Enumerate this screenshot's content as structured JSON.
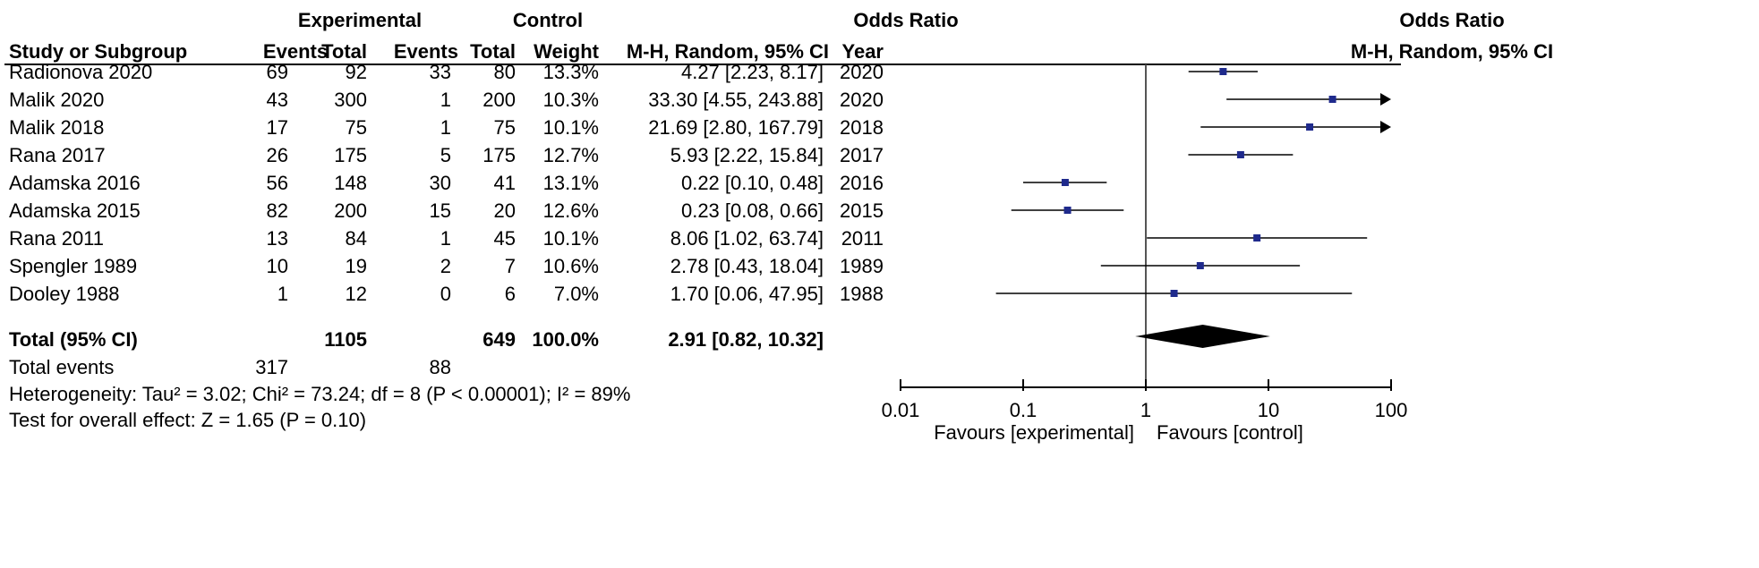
{
  "header": {
    "group1": "Experimental",
    "group2": "Control",
    "effect_top": "Odds Ratio",
    "plot_top": "Odds Ratio",
    "columns": {
      "study": "Study or Subgroup",
      "events1": "Events",
      "total1": "Total",
      "events2": "Events",
      "total2": "Total",
      "weight": "Weight",
      "method": "M-H, Random, 95% CI",
      "year": "Year",
      "plot_method": "M-H, Random, 95% CI"
    }
  },
  "studies": [
    {
      "study": "Radionova 2020",
      "events1": "69",
      "total1": "92",
      "events2": "33",
      "total2": "80",
      "weight": "13.3%",
      "ci_text": "4.27 [2.23, 8.17]",
      "year": "2020"
    },
    {
      "study": "Malik 2020",
      "events1": "43",
      "total1": "300",
      "events2": "1",
      "total2": "200",
      "weight": "10.3%",
      "ci_text": "33.30 [4.55, 243.88]",
      "year": "2020"
    },
    {
      "study": "Malik 2018",
      "events1": "17",
      "total1": "75",
      "events2": "1",
      "total2": "75",
      "weight": "10.1%",
      "ci_text": "21.69 [2.80, 167.79]",
      "year": "2018"
    },
    {
      "study": "Rana 2017",
      "events1": "26",
      "total1": "175",
      "events2": "5",
      "total2": "175",
      "weight": "12.7%",
      "ci_text": "5.93 [2.22, 15.84]",
      "year": "2017"
    },
    {
      "study": "Adamska 2016",
      "events1": "56",
      "total1": "148",
      "events2": "30",
      "total2": "41",
      "weight": "13.1%",
      "ci_text": "0.22 [0.10, 0.48]",
      "year": "2016"
    },
    {
      "study": "Adamska 2015",
      "events1": "82",
      "total1": "200",
      "events2": "15",
      "total2": "20",
      "weight": "12.6%",
      "ci_text": "0.23 [0.08, 0.66]",
      "year": "2015"
    },
    {
      "study": "Rana 2011",
      "events1": "13",
      "total1": "84",
      "events2": "1",
      "total2": "45",
      "weight": "10.1%",
      "ci_text": "8.06 [1.02, 63.74]",
      "year": "2011"
    },
    {
      "study": "Spengler 1989",
      "events1": "10",
      "total1": "19",
      "events2": "2",
      "total2": "7",
      "weight": "10.6%",
      "ci_text": "2.78 [0.43, 18.04]",
      "year": "1989"
    },
    {
      "study": "Dooley 1988",
      "events1": "1",
      "total1": "12",
      "events2": "0",
      "total2": "6",
      "weight": "7.0%",
      "ci_text": "1.70 [0.06, 47.95]",
      "year": "1988"
    }
  ],
  "total": {
    "label": "Total (95% CI)",
    "total1": "1105",
    "total2": "649",
    "weight": "100.0%",
    "ci_text": "2.91 [0.82, 10.32]"
  },
  "total_events": {
    "label": "Total events",
    "events1": "317",
    "events2": "88"
  },
  "heterogeneity": "Heterogeneity: Tau² = 3.02; Chi² = 73.24; df = 8 (P < 0.00001); I² = 89%",
  "overall_effect": "Test for overall effect: Z = 1.65 (P = 0.10)",
  "axis": {
    "favours_left": "Favours [experimental]",
    "favours_right": "Favours [control]"
  },
  "colors": {
    "marker": "#1f2a8c",
    "ci_line": "#000000",
    "axis": "#000000",
    "reference": "#555555"
  },
  "chart_data": {
    "type": "forest",
    "scale": "log",
    "xlim": [
      0.01,
      100
    ],
    "xticks": [
      0.01,
      0.1,
      1,
      10,
      100
    ],
    "xtick_labels": [
      "0.01",
      "0.1",
      "1",
      "10",
      "100"
    ],
    "reference_line": 1,
    "points": [
      {
        "study": "Radionova 2020",
        "or": 4.27,
        "lo": 2.23,
        "hi": 8.17
      },
      {
        "study": "Malik 2020",
        "or": 33.3,
        "lo": 4.55,
        "hi": 243.88
      },
      {
        "study": "Malik 2018",
        "or": 21.69,
        "lo": 2.8,
        "hi": 167.79
      },
      {
        "study": "Rana 2017",
        "or": 5.93,
        "lo": 2.22,
        "hi": 15.84
      },
      {
        "study": "Adamska 2016",
        "or": 0.22,
        "lo": 0.1,
        "hi": 0.48
      },
      {
        "study": "Adamska 2015",
        "or": 0.23,
        "lo": 0.08,
        "hi": 0.66
      },
      {
        "study": "Rana 2011",
        "or": 8.06,
        "lo": 1.02,
        "hi": 63.74
      },
      {
        "study": "Spengler 1989",
        "or": 2.78,
        "lo": 0.43,
        "hi": 18.04
      },
      {
        "study": "Dooley 1988",
        "or": 1.7,
        "lo": 0.06,
        "hi": 47.95
      }
    ],
    "pooled": {
      "or": 2.91,
      "lo": 0.82,
      "hi": 10.32
    }
  }
}
